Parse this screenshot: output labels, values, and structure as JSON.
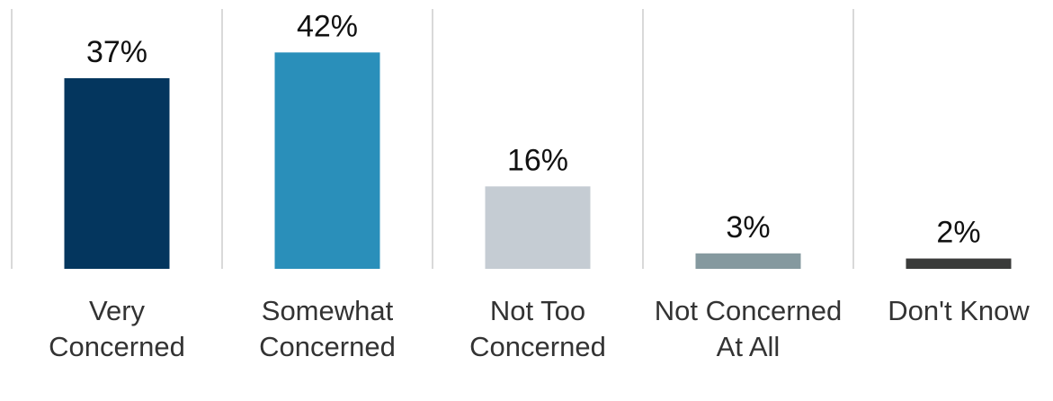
{
  "chart_data": {
    "type": "bar",
    "categories": [
      "Very Concerned",
      "Somewhat Concerned",
      "Not Too Concerned",
      "Not Concerned At All",
      "Don't Know"
    ],
    "values": [
      37,
      42,
      16,
      3,
      2
    ],
    "value_labels": [
      "37%",
      "42%",
      "16%",
      "3%",
      "2%"
    ],
    "ylim": [
      0,
      50
    ],
    "colors": [
      "#04365e",
      "#2a8fba",
      "#c5ccd3",
      "#85999f",
      "#3a3b3a"
    ],
    "grid": "vertical separators",
    "legend": "none"
  }
}
